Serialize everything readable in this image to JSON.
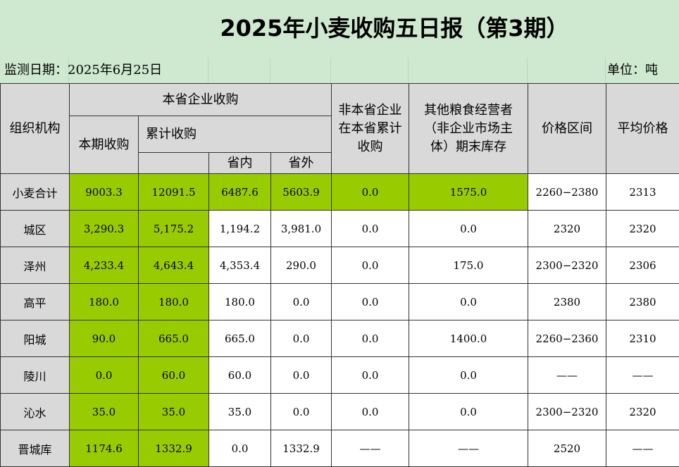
{
  "title": "2025年小麦收购五日报（第3期）",
  "info": {
    "date_label": "监测日期：",
    "date_value": "2025年6月25日",
    "unit": "单位：吨"
  },
  "headers": {
    "org": "组织机构",
    "local_purchase": "本省企业收购",
    "current": "本期收购",
    "cumulative": "累计收购",
    "in_province": "省内",
    "out_province": "省外",
    "nonlocal": "非本省企业在本省累计收购",
    "other_stock": "其他粮食经营者（非企业市场主体）期末库存",
    "price_range": "价格区间",
    "avg_price": "平均价格"
  },
  "rows": [
    {
      "org": "小麦合计",
      "current": "9003.3",
      "cumulative": "12091.5",
      "in": "6487.6",
      "out": "5603.9",
      "nonlocal": "0.0",
      "other": "1575.0",
      "range": "2260−2380",
      "avg": "2313"
    },
    {
      "org": "城区",
      "current": "3,290.3",
      "cumulative": "5,175.2",
      "in": "1,194.2",
      "out": "3,981.0",
      "nonlocal": "0.0",
      "other": "0.0",
      "range": "2320",
      "avg": "2320"
    },
    {
      "org": "泽州",
      "current": "4,233.4",
      "cumulative": "4,643.4",
      "in": "4,353.4",
      "out": "290.0",
      "nonlocal": "0.0",
      "other": "175.0",
      "range": "2300−2320",
      "avg": "2306"
    },
    {
      "org": "高平",
      "current": "180.0",
      "cumulative": "180.0",
      "in": "180.0",
      "out": "0.0",
      "nonlocal": "0.0",
      "other": "0.0",
      "range": "2380",
      "avg": "2380"
    },
    {
      "org": "阳城",
      "current": "90.0",
      "cumulative": "665.0",
      "in": "665.0",
      "out": "0.0",
      "nonlocal": "0.0",
      "other": "1400.0",
      "range": "2260−2360",
      "avg": "2310"
    },
    {
      "org": "陵川",
      "current": "0.0",
      "cumulative": "60.0",
      "in": "60.0",
      "out": "0.0",
      "nonlocal": "0.0",
      "other": "0.0",
      "range": "——",
      "avg": "——"
    },
    {
      "org": "沁水",
      "current": "35.0",
      "cumulative": "35.0",
      "in": "35.0",
      "out": "0.0",
      "nonlocal": "0.0",
      "other": "0.0",
      "range": "2300−2320",
      "avg": "2320"
    },
    {
      "org": "晋城库",
      "current": "1174.6",
      "cumulative": "1332.9",
      "in": "0.0",
      "out": "1332.9",
      "nonlocal": "——",
      "other": "——",
      "range": "2520",
      "avg": "——"
    }
  ]
}
